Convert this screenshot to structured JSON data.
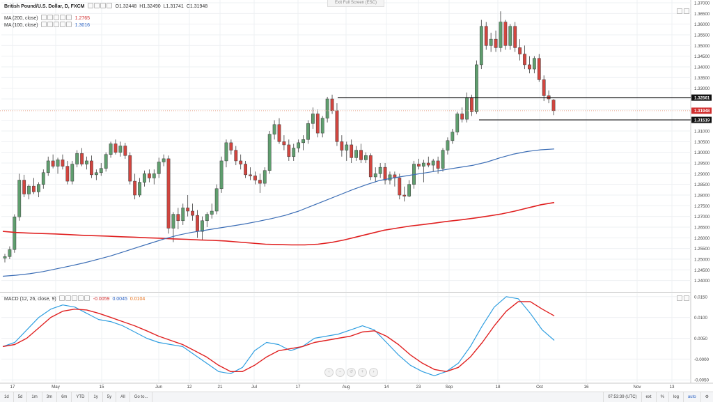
{
  "header": {
    "symbol": "British Pound/U.S. Dollar, D, FXCM",
    "open": "O1.32448",
    "high": "H1.32490",
    "low": "L1.31741",
    "close": "C1.31948",
    "exit_fullscreen": "Exit Full Screen (ESC)"
  },
  "indicators": {
    "ma200": {
      "label": "MA (200, close)",
      "value": "1.2765",
      "color": "#e02020"
    },
    "ma100": {
      "label": "MA (100, close)",
      "value": "1.3016",
      "color": "#3b6db5"
    },
    "macd": {
      "label": "MACD (12, 26, close, 9)",
      "v1": "-0.0059",
      "v2": "0.0045",
      "v3": "0.0104"
    }
  },
  "bottom_bar": {
    "ranges": [
      "1d",
      "5d",
      "1m",
      "3m",
      "6m",
      "YTD",
      "1y",
      "5y",
      "All",
      "Go to..."
    ],
    "time": "07:53:39 (UTC)",
    "options": [
      "ext",
      "%",
      "log",
      "auto"
    ]
  },
  "chart_data": [
    {
      "type": "candlestick",
      "title": "British Pound/U.S. Dollar, D, FXCM",
      "ylim": [
        1.235,
        1.37
      ],
      "y_ticks": [
        "1.24000",
        "1.24500",
        "1.25000",
        "1.25500",
        "1.26000",
        "1.26500",
        "1.27000",
        "1.27500",
        "1.28000",
        "1.28500",
        "1.29000",
        "1.29500",
        "1.30000",
        "1.30500",
        "1.31000",
        "1.31500",
        "1.32000",
        "1.32500",
        "1.33000",
        "1.33500",
        "1.34000",
        "1.34500",
        "1.35000",
        "1.35500",
        "1.36000",
        "1.36500",
        "1.37000"
      ],
      "x_ticks": [
        "17",
        "May",
        "15",
        "Jun",
        "12",
        "21",
        "Jul",
        "17",
        "Aug",
        "14",
        "23",
        "Sep",
        "18",
        "Oct",
        "16",
        "Nov",
        "13"
      ],
      "price_badges": [
        {
          "label": "1.32561",
          "value": 1.32561,
          "color": "#111111"
        },
        {
          "label": "1.31948",
          "value": 1.31948,
          "color": "#d12f2f"
        },
        {
          "label": "1.31519",
          "value": 1.31519,
          "color": "#111111"
        }
      ],
      "horizontal_lines": [
        {
          "value": 1.32561,
          "x_start": "Jul 28",
          "x_end": "right edge"
        },
        {
          "value": 1.31519,
          "x_start": "Sep 13",
          "x_end": "right edge"
        }
      ],
      "current_price": 1.31948,
      "candles": [
        [
          1.2505,
          1.2525,
          1.2485,
          1.2512
        ],
        [
          1.2512,
          1.256,
          1.25,
          1.2545
        ],
        [
          1.2545,
          1.271,
          1.253,
          1.2698
        ],
        [
          1.2698,
          1.29,
          1.268,
          1.287
        ],
        [
          1.287,
          1.2895,
          1.279,
          1.2805
        ],
        [
          1.2805,
          1.285,
          1.278,
          1.2842
        ],
        [
          1.2842,
          1.288,
          1.2805,
          1.2815
        ],
        [
          1.2815,
          1.286,
          1.279,
          1.285
        ],
        [
          1.285,
          1.292,
          1.283,
          1.2905
        ],
        [
          1.2905,
          1.298,
          1.289,
          1.296
        ],
        [
          1.296,
          1.299,
          1.2925,
          1.2935
        ],
        [
          1.2935,
          1.2975,
          1.29,
          1.2965
        ],
        [
          1.2965,
          1.299,
          1.292,
          1.2935
        ],
        [
          1.2935,
          1.296,
          1.285,
          1.2865
        ],
        [
          1.2865,
          1.296,
          1.285,
          1.2945
        ],
        [
          1.2945,
          1.301,
          1.293,
          1.2995
        ],
        [
          1.2995,
          1.302,
          1.2935,
          1.2945
        ],
        [
          1.2945,
          1.298,
          1.292,
          1.296
        ],
        [
          1.296,
          1.2985,
          1.288,
          1.2895
        ],
        [
          1.2895,
          1.292,
          1.287,
          1.2905
        ],
        [
          1.2905,
          1.295,
          1.289,
          1.2925
        ],
        [
          1.2925,
          1.3,
          1.291,
          1.299
        ],
        [
          1.299,
          1.305,
          1.2975,
          1.304
        ],
        [
          1.304,
          1.306,
          1.299,
          1.3
        ],
        [
          1.3,
          1.305,
          1.298,
          1.303
        ],
        [
          1.303,
          1.3045,
          1.297,
          1.2985
        ],
        [
          1.2985,
          1.3,
          1.285,
          1.2865
        ],
        [
          1.2865,
          1.29,
          1.278,
          1.28
        ],
        [
          1.28,
          1.288,
          1.279,
          1.286
        ],
        [
          1.286,
          1.2915,
          1.284,
          1.29
        ],
        [
          1.29,
          1.292,
          1.286,
          1.288
        ],
        [
          1.288,
          1.292,
          1.285,
          1.29
        ],
        [
          1.29,
          1.2975,
          1.288,
          1.2955
        ],
        [
          1.2955,
          1.299,
          1.2935,
          1.297
        ],
        [
          1.297,
          1.2985,
          1.262,
          1.2645
        ],
        [
          1.2645,
          1.272,
          1.258,
          1.271
        ],
        [
          1.271,
          1.274,
          1.264,
          1.268
        ],
        [
          1.268,
          1.276,
          1.266,
          1.274
        ],
        [
          1.274,
          1.28,
          1.27,
          1.2725
        ],
        [
          1.2725,
          1.276,
          1.268,
          1.2705
        ],
        [
          1.2705,
          1.273,
          1.26,
          1.263
        ],
        [
          1.263,
          1.27,
          1.259,
          1.268
        ],
        [
          1.268,
          1.272,
          1.265,
          1.271
        ],
        [
          1.271,
          1.276,
          1.269,
          1.2725
        ],
        [
          1.2725,
          1.285,
          1.271,
          1.283
        ],
        [
          1.283,
          1.298,
          1.281,
          1.296
        ],
        [
          1.296,
          1.306,
          1.293,
          1.3045
        ],
        [
          1.3045,
          1.306,
          1.299,
          1.301
        ],
        [
          1.301,
          1.303,
          1.294,
          1.296
        ],
        [
          1.296,
          1.299,
          1.292,
          1.2945
        ],
        [
          1.2945,
          1.296,
          1.288,
          1.2895
        ],
        [
          1.2895,
          1.293,
          1.287,
          1.289
        ],
        [
          1.289,
          1.291,
          1.285,
          1.287
        ],
        [
          1.287,
          1.29,
          1.281,
          1.2855
        ],
        [
          1.2855,
          1.293,
          1.284,
          1.2915
        ],
        [
          1.2915,
          1.31,
          1.29,
          1.3085
        ],
        [
          1.3085,
          1.315,
          1.306,
          1.313
        ],
        [
          1.313,
          1.316,
          1.304,
          1.305
        ],
        [
          1.305,
          1.308,
          1.301,
          1.3035
        ],
        [
          1.3035,
          1.306,
          1.296,
          1.298
        ],
        [
          1.298,
          1.304,
          1.296,
          1.302
        ],
        [
          1.302,
          1.306,
          1.3,
          1.3045
        ],
        [
          1.3045,
          1.308,
          1.301,
          1.306
        ],
        [
          1.306,
          1.315,
          1.304,
          1.3135
        ],
        [
          1.3135,
          1.321,
          1.311,
          1.318
        ],
        [
          1.318,
          1.32,
          1.307,
          1.309
        ],
        [
          1.309,
          1.317,
          1.307,
          1.316
        ],
        [
          1.316,
          1.326,
          1.314,
          1.325
        ],
        [
          1.325,
          1.327,
          1.318,
          1.3195
        ],
        [
          1.3195,
          1.323,
          1.303,
          1.305
        ],
        [
          1.305,
          1.308,
          1.298,
          1.301
        ],
        [
          1.301,
          1.305,
          1.296,
          1.3035
        ],
        [
          1.3035,
          1.306,
          1.295,
          1.2975
        ],
        [
          1.2975,
          1.303,
          1.296,
          1.301
        ],
        [
          1.301,
          1.304,
          1.295,
          1.2965
        ],
        [
          1.2965,
          1.3,
          1.295,
          1.2985
        ],
        [
          1.2985,
          1.2995,
          1.287,
          1.2885
        ],
        [
          1.2885,
          1.293,
          1.286,
          1.29
        ],
        [
          1.29,
          1.295,
          1.288,
          1.293
        ],
        [
          1.293,
          1.295,
          1.285,
          1.287
        ],
        [
          1.287,
          1.291,
          1.285,
          1.2895
        ],
        [
          1.2895,
          1.291,
          1.284,
          1.288
        ],
        [
          1.288,
          1.29,
          1.278,
          1.28
        ],
        [
          1.28,
          1.284,
          1.277,
          1.2795
        ],
        [
          1.2795,
          1.287,
          1.279,
          1.285
        ],
        [
          1.285,
          1.296,
          1.283,
          1.2945
        ],
        [
          1.2945,
          1.297,
          1.292,
          1.2935
        ],
        [
          1.2935,
          1.2965,
          1.286,
          1.295
        ],
        [
          1.295,
          1.298,
          1.293,
          1.294
        ],
        [
          1.294,
          1.297,
          1.291,
          1.296
        ],
        [
          1.296,
          1.298,
          1.29,
          1.2925
        ],
        [
          1.2925,
          1.302,
          1.291,
          1.301
        ],
        [
          1.301,
          1.307,
          1.299,
          1.3055
        ],
        [
          1.3055,
          1.311,
          1.304,
          1.3095
        ],
        [
          1.3095,
          1.319,
          1.308,
          1.318
        ],
        [
          1.318,
          1.321,
          1.314,
          1.3155
        ],
        [
          1.3155,
          1.328,
          1.314,
          1.3255
        ],
        [
          1.3255,
          1.327,
          1.317,
          1.319
        ],
        [
          1.319,
          1.343,
          1.318,
          1.341
        ],
        [
          1.341,
          1.362,
          1.339,
          1.359
        ],
        [
          1.359,
          1.361,
          1.348,
          1.35
        ],
        [
          1.35,
          1.356,
          1.347,
          1.353
        ],
        [
          1.353,
          1.357,
          1.347,
          1.349
        ],
        [
          1.349,
          1.366,
          1.347,
          1.361
        ],
        [
          1.361,
          1.362,
          1.348,
          1.35
        ],
        [
          1.35,
          1.36,
          1.348,
          1.359
        ],
        [
          1.359,
          1.361,
          1.347,
          1.349
        ],
        [
          1.349,
          1.353,
          1.343,
          1.346
        ],
        [
          1.346,
          1.35,
          1.339,
          1.341
        ],
        [
          1.341,
          1.345,
          1.337,
          1.339
        ],
        [
          1.339,
          1.345,
          1.337,
          1.344
        ],
        [
          1.344,
          1.346,
          1.333,
          1.334
        ],
        [
          1.334,
          1.336,
          1.324,
          1.3265
        ],
        [
          1.3265,
          1.329,
          1.323,
          1.325
        ],
        [
          1.3245,
          1.3249,
          1.3174,
          1.3195
        ]
      ]
    },
    {
      "type": "line",
      "title": "MA (200, close) / MA (100, close)",
      "series": [
        {
          "name": "MA (200, close)",
          "color": "#e02020",
          "values": [
            1.263,
            1.2625,
            1.2622,
            1.262,
            1.2618,
            1.2615,
            1.2612,
            1.261,
            1.2608,
            1.2605,
            1.2603,
            1.26,
            1.2598,
            1.2595,
            1.2593,
            1.259,
            1.2588,
            1.2585,
            1.258,
            1.2575,
            1.257,
            1.2568,
            1.2567,
            1.2567,
            1.257,
            1.2578,
            1.259,
            1.2605,
            1.262,
            1.2635,
            1.2645,
            1.2655,
            1.2662,
            1.267,
            1.2678,
            1.2685,
            1.2693,
            1.2702,
            1.2712,
            1.2725,
            1.274,
            1.2755,
            1.2765
          ]
        },
        {
          "name": "MA (100, close)",
          "color": "#3b6db5",
          "values": [
            1.242,
            1.2425,
            1.2432,
            1.2442,
            1.2455,
            1.2468,
            1.2482,
            1.2498,
            1.2515,
            1.2535,
            1.2555,
            1.2575,
            1.2595,
            1.2612,
            1.2625,
            1.2635,
            1.2645,
            1.2655,
            1.2665,
            1.2677,
            1.269,
            1.2705,
            1.2725,
            1.275,
            1.2775,
            1.28,
            1.2825,
            1.2848,
            1.2868,
            1.288,
            1.289,
            1.29,
            1.291,
            1.292,
            1.293,
            1.294,
            1.2955,
            1.2975,
            1.2992,
            1.3004,
            1.3012,
            1.3016
          ]
        }
      ]
    },
    {
      "type": "line",
      "title": "MACD (12, 26, close, 9)",
      "ylim": [
        -0.0058,
        0.0158
      ],
      "y_ticks": [
        "0.0150",
        "0.0100",
        "0.0050",
        "-0.0000",
        "-0.0050"
      ],
      "series": [
        {
          "name": "MACD",
          "color": "#2f9ee0",
          "values": [
            0.003,
            0.004,
            0.007,
            0.01,
            0.012,
            0.013,
            0.0125,
            0.011,
            0.0095,
            0.009,
            0.008,
            0.0065,
            0.005,
            0.004,
            0.0035,
            0.003,
            0.001,
            -0.001,
            -0.003,
            -0.0035,
            -0.002,
            0.002,
            0.004,
            0.0035,
            0.002,
            0.003,
            0.005,
            0.0055,
            0.006,
            0.007,
            0.008,
            0.007,
            0.004,
            0.001,
            -0.0015,
            -0.003,
            -0.004,
            -0.003,
            -0.001,
            0.003,
            0.008,
            0.0125,
            0.015,
            0.0145,
            0.011,
            0.007,
            0.0045
          ]
        },
        {
          "name": "Signal",
          "color": "#e02020",
          "values": [
            0.003,
            0.0035,
            0.005,
            0.0075,
            0.01,
            0.0115,
            0.012,
            0.0118,
            0.011,
            0.01,
            0.009,
            0.008,
            0.0068,
            0.0055,
            0.0045,
            0.0035,
            0.002,
            0.0005,
            -0.0015,
            -0.003,
            -0.003,
            -0.0015,
            0.0005,
            0.002,
            0.0025,
            0.003,
            0.004,
            0.0045,
            0.005,
            0.0055,
            0.0065,
            0.0068,
            0.0055,
            0.0035,
            0.001,
            -0.001,
            -0.0025,
            -0.003,
            -0.002,
            0.0005,
            0.004,
            0.008,
            0.0115,
            0.0138,
            0.0138,
            0.012,
            0.0104
          ]
        }
      ]
    }
  ]
}
